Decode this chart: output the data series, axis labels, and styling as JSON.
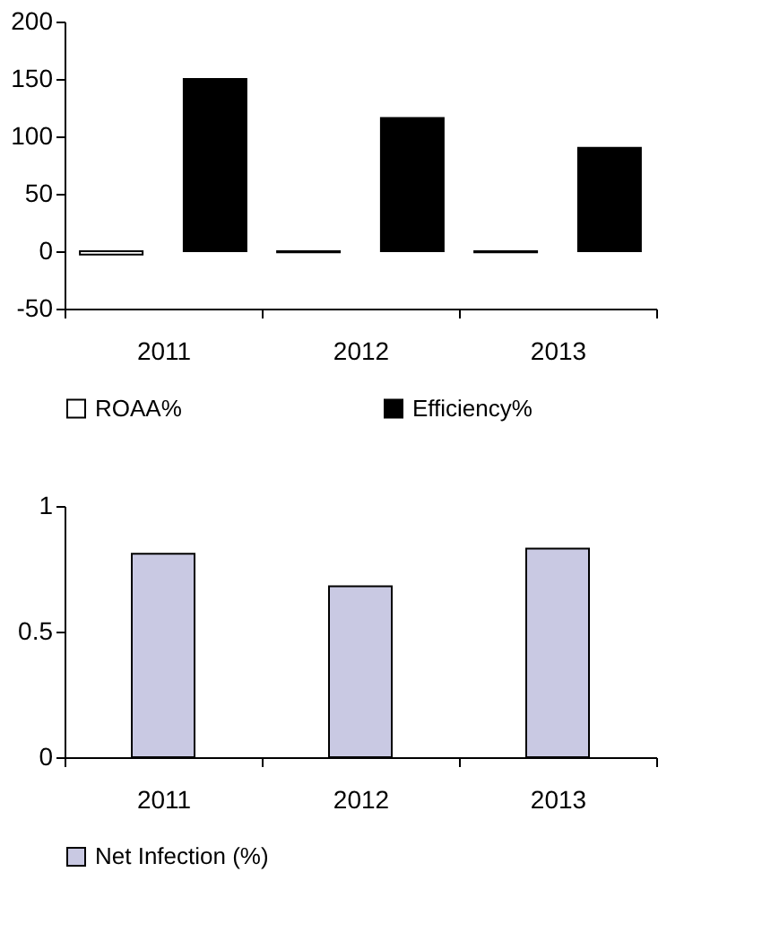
{
  "chart_data": [
    {
      "type": "bar",
      "categories": [
        "2011",
        "2012",
        "2013"
      ],
      "series": [
        {
          "name": "ROAA%",
          "color": "#ffffff",
          "values": [
            -3,
            -1,
            -1
          ]
        },
        {
          "name": "Efficiency%",
          "color": "#000000",
          "values": [
            150,
            116,
            90
          ]
        }
      ],
      "ylim": [
        -50,
        200
      ],
      "yticks": [
        -50,
        0,
        50,
        100,
        150,
        200
      ],
      "grid": false,
      "legend": "bottom"
    },
    {
      "type": "bar",
      "categories": [
        "2011",
        "2012",
        "2013"
      ],
      "series": [
        {
          "name": "Net Infection (%)",
          "color": "#c9c9e3",
          "values": [
            0.81,
            0.68,
            0.83
          ]
        }
      ],
      "ylim": [
        0,
        1
      ],
      "yticks": [
        0,
        0.5,
        1
      ],
      "grid": false,
      "legend": "bottom"
    }
  ]
}
